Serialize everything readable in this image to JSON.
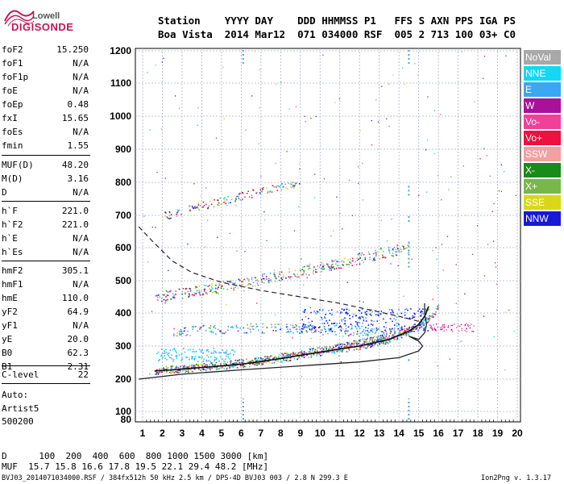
{
  "logo": {
    "line1": "Lowell",
    "line2": "DIGISONDE"
  },
  "header": {
    "row1": "Station    YYYY DAY    DDD HHMMSS P1   FFS S AXN PPS IGA PS",
    "row2": "Boa Vista  2014 Mar12  071 034000 RSF  005 2 713 100 03+ C0"
  },
  "params": [
    {
      "label": "foF2",
      "value": "15.250"
    },
    {
      "label": "foF1",
      "value": "N/A"
    },
    {
      "label": "foF1p",
      "value": "N/A"
    },
    {
      "label": "foE",
      "value": "N/A"
    },
    {
      "label": "foEp",
      "value": "0.48"
    },
    {
      "label": "fxI",
      "value": "15.65"
    },
    {
      "label": "foEs",
      "value": "N/A"
    },
    {
      "label": "fmin",
      "value": "1.55"
    },
    {
      "label": "MUF(D)",
      "value": "48.20"
    },
    {
      "label": "M(D)",
      "value": "3.16"
    },
    {
      "label": "D",
      "value": "N/A"
    },
    {
      "label": "h`F",
      "value": "221.0"
    },
    {
      "label": "h`F2",
      "value": "221.0"
    },
    {
      "label": "h`E",
      "value": "N/A"
    },
    {
      "label": "h`Es",
      "value": "N/A"
    },
    {
      "label": "hmF2",
      "value": "305.1"
    },
    {
      "label": "hmF1",
      "value": "N/A"
    },
    {
      "label": "hmE",
      "value": "110.0"
    },
    {
      "label": "yF2",
      "value": "64.9"
    },
    {
      "label": "yF1",
      "value": "N/A"
    },
    {
      "label": "yE",
      "value": "20.0"
    },
    {
      "label": "B0",
      "value": "62.3"
    },
    {
      "label": "B1",
      "value": "2.31"
    },
    {
      "label": "C-level",
      "value": "22"
    }
  ],
  "auto": {
    "line1": "Auto:",
    "line2": "Artist5",
    "line3": "500200"
  },
  "legend": [
    {
      "label": "NoVal",
      "color": "#a8a8a8"
    },
    {
      "label": "NNE",
      "color": "#12d8f5"
    },
    {
      "label": "E",
      "color": "#3aa8f0"
    },
    {
      "label": "W",
      "color": "#a8129a"
    },
    {
      "label": "Vo-",
      "color": "#f0409a"
    },
    {
      "label": "Vo+",
      "color": "#ee1040"
    },
    {
      "label": "SSW",
      "color": "#f2a0a0"
    },
    {
      "label": "X-",
      "color": "#1a8a18"
    },
    {
      "label": "X+",
      "color": "#78b848"
    },
    {
      "label": "SSE",
      "color": "#d8d818"
    },
    {
      "label": "NNW",
      "color": "#1818d8"
    }
  ],
  "footer": {
    "row1": "D      100  200  400  600  800 1000 1500 3000 [km]",
    "row2": "MUF  15.7 15.8 16.6 17.8 19.5 22.1 29.4 48.2 [MHz]",
    "source": "BVJ03_2014071034000.RSF / 384fx512h 50 kHz 2.5 km / DPS-4D BVJ03 003 / 2.8 N 299.3 E",
    "version": "Ion2Png v. 1.3.17"
  },
  "chart_data": {
    "type": "scatter",
    "title": "",
    "xlabel": "",
    "ylabel": "",
    "xlim": [
      0.8,
      20.2
    ],
    "ylim": [
      75,
      1210
    ],
    "x_ticks": [
      "1",
      "2",
      "3",
      "4",
      "5",
      "6",
      "7",
      "8",
      "9",
      "10",
      "11",
      "12",
      "13",
      "14",
      "15",
      "16",
      "17",
      "18",
      "19",
      "20"
    ],
    "y_ticks": [
      "80",
      "100",
      "200",
      "300",
      "400",
      "500",
      "600",
      "700",
      "800",
      "900",
      "1000",
      "1100",
      "1200"
    ],
    "grid": true,
    "scaling": "nonlinear-height",
    "traces": [
      {
        "name": "F2 O-trace",
        "points": [
          [
            1.6,
            225
          ],
          [
            2.5,
            228
          ],
          [
            4,
            235
          ],
          [
            6,
            245
          ],
          [
            8,
            262
          ],
          [
            10,
            282
          ],
          [
            12,
            300
          ],
          [
            13.5,
            320
          ],
          [
            14.5,
            345
          ],
          [
            15,
            365
          ],
          [
            15.3,
            390
          ],
          [
            15.5,
            420
          ]
        ]
      },
      {
        "name": "F2 X-trace",
        "points": [
          [
            1.8,
            230
          ],
          [
            3,
            235
          ],
          [
            5,
            245
          ],
          [
            7,
            260
          ],
          [
            9,
            280
          ],
          [
            11,
            300
          ],
          [
            13,
            325
          ],
          [
            14.5,
            350
          ],
          [
            15.3,
            375
          ],
          [
            15.8,
            400
          ],
          [
            16,
            430
          ]
        ]
      },
      {
        "name": "F2 2nd hop",
        "points": [
          [
            1.6,
            450
          ],
          [
            3,
            462
          ],
          [
            5,
            482
          ],
          [
            7,
            505
          ],
          [
            9,
            530
          ],
          [
            11,
            555
          ],
          [
            12.5,
            575
          ],
          [
            13.5,
            590
          ],
          [
            14.5,
            600
          ]
        ]
      },
      {
        "name": "F2 3rd hop",
        "points": [
          [
            2.1,
            700
          ],
          [
            4,
            730
          ],
          [
            6,
            760
          ],
          [
            8,
            790
          ],
          [
            9,
            800
          ]
        ]
      },
      {
        "name": "E-Es band",
        "points": [
          [
            2.5,
            345
          ],
          [
            4,
            350
          ],
          [
            6,
            355
          ],
          [
            8,
            355
          ],
          [
            10,
            350
          ],
          [
            12,
            345
          ],
          [
            14,
            342
          ]
        ]
      }
    ],
    "profile_solid": [
      [
        0.8,
        200
      ],
      [
        3,
        215
      ],
      [
        6,
        228
      ],
      [
        9,
        240
      ],
      [
        12,
        252
      ],
      [
        14,
        265
      ],
      [
        15,
        285
      ],
      [
        15.2,
        300
      ],
      [
        15,
        315
      ],
      [
        14.5,
        330
      ],
      [
        15,
        320
      ],
      [
        15.3,
        340
      ],
      [
        15.4,
        365
      ],
      [
        15.3,
        400
      ],
      [
        15.3,
        430
      ]
    ],
    "profile_dashed": [
      [
        0.8,
        665
      ],
      [
        1.5,
        620
      ],
      [
        2.5,
        560
      ],
      [
        3.5,
        525
      ],
      [
        5,
        495
      ],
      [
        7,
        470
      ],
      [
        9,
        450
      ],
      [
        11,
        430
      ],
      [
        12.5,
        410
      ],
      [
        14,
        390
      ],
      [
        15,
        375
      ]
    ],
    "dot_colors": [
      "#3aa8f0",
      "#1a8a18",
      "#f0409a",
      "#ee1040",
      "#a8129a",
      "#1818d8",
      "#12d8f5",
      "#78b848",
      "#d8d818",
      "#a8a8a8"
    ]
  }
}
